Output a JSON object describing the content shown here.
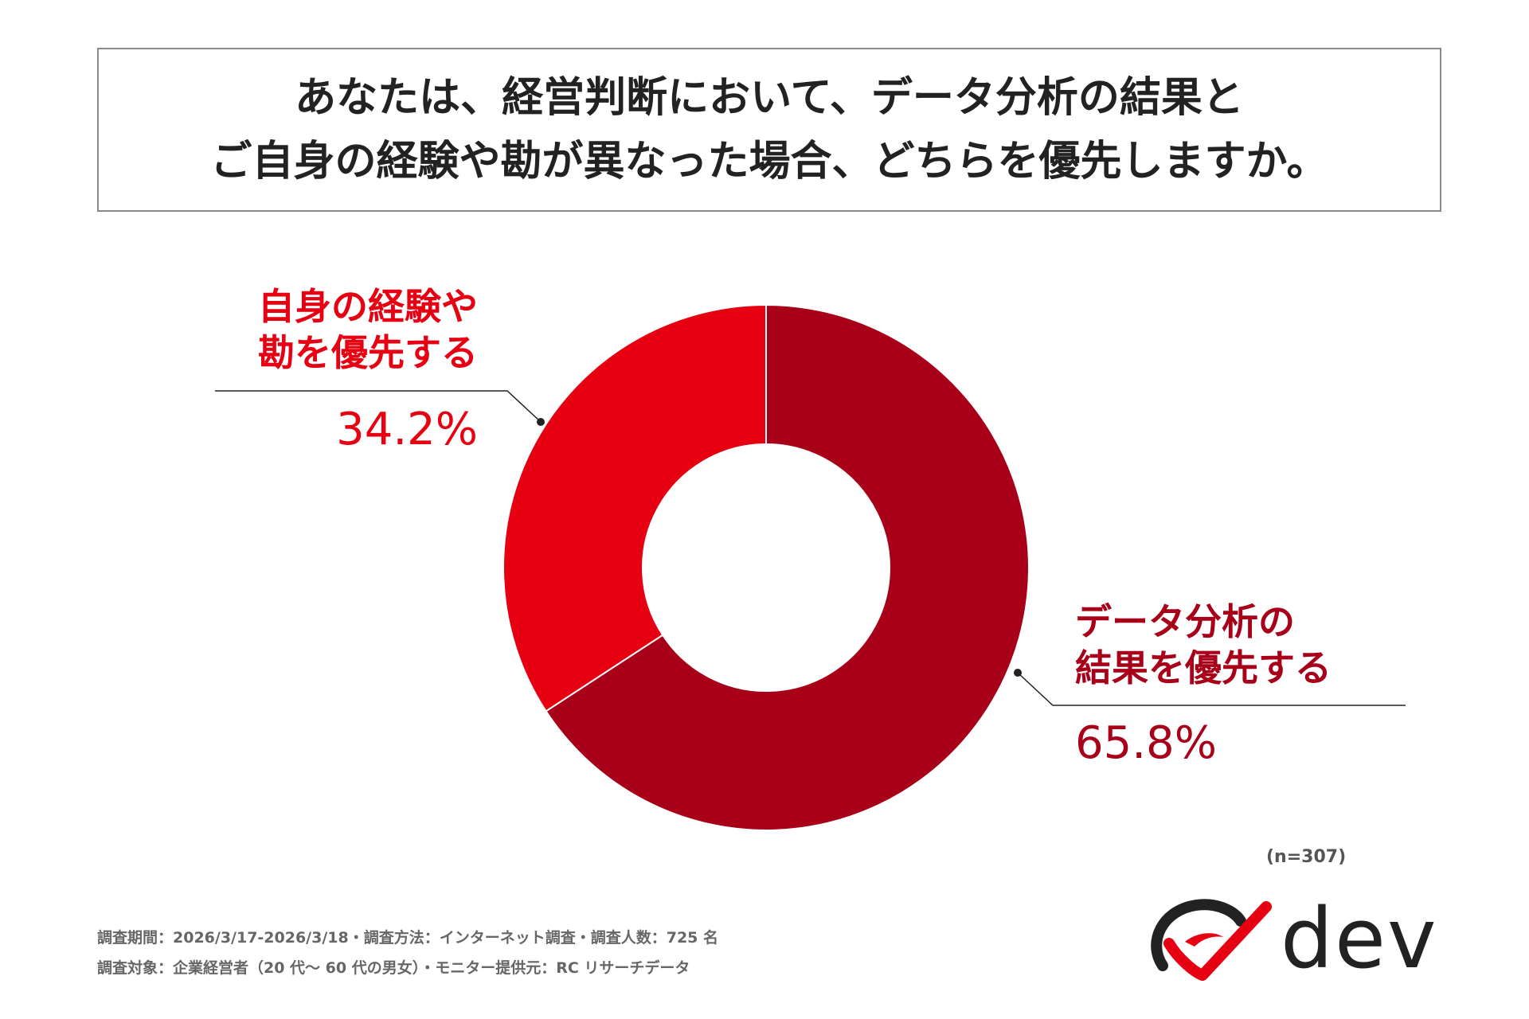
{
  "title": {
    "line1": "あなたは、経営判断において、データ分析の結果と",
    "line2": "ご自身の経験や勘が異なった場合、どちらを優先しますか。"
  },
  "chart_data": {
    "type": "pie",
    "variant": "donut",
    "start": "12 o'clock, clockwise",
    "slices": [
      {
        "label_line1": "データ分析の",
        "label_line2": "結果を優先する",
        "value": 65.8,
        "value_text": "65.8%",
        "color": "#a9001a"
      },
      {
        "label_line1": "自身の経験や",
        "label_line2": "勘を優先する",
        "value": 34.2,
        "value_text": "34.2%",
        "color": "#e60012"
      }
    ],
    "n_text": "(n=307)"
  },
  "footer": {
    "line1": "調査期間：2026/3/17-2026/3/18・調査方法：インターネット調査・調査人数：725 名",
    "line2": "調査対象：企業経営者（20 代〜 60 代の男女）・モニター提供元：RC リサーチデータ"
  },
  "logo": {
    "text": "dev",
    "color": "#e60012"
  }
}
